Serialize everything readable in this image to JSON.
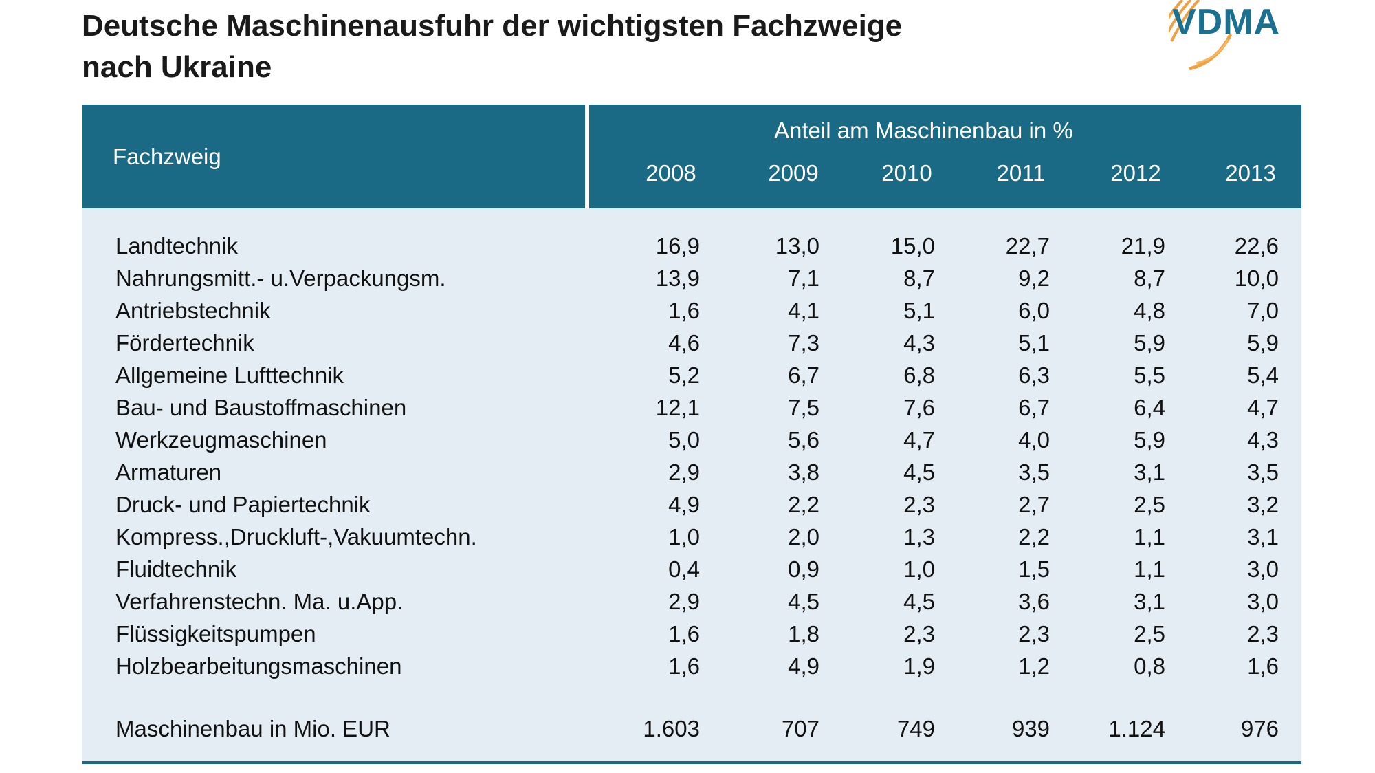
{
  "header": {
    "title_line1": "Deutsche Maschinenausfuhr der wichtigsten Fachzweige",
    "title_line2": "nach Ukraine",
    "logo": "VDMA"
  },
  "table": {
    "column_header": "Fachzweig",
    "group_header": "Anteil am Maschinenbau in %",
    "years": [
      "2008",
      "2009",
      "2010",
      "2011",
      "2012",
      "2013"
    ],
    "rows": [
      [
        "Landtechnik",
        "16,9",
        "13,0",
        "15,0",
        "22,7",
        "21,9",
        "22,6"
      ],
      [
        "Nahrungsmitt.- u.Verpackungsm.",
        "13,9",
        "7,1",
        "8,7",
        "9,2",
        "8,7",
        "10,0"
      ],
      [
        "Antriebstechnik",
        "1,6",
        "4,1",
        "5,1",
        "6,0",
        "4,8",
        "7,0"
      ],
      [
        "Fördertechnik",
        "4,6",
        "7,3",
        "4,3",
        "5,1",
        "5,9",
        "5,9"
      ],
      [
        "Allgemeine Lufttechnik",
        "5,2",
        "6,7",
        "6,8",
        "6,3",
        "5,5",
        "5,4"
      ],
      [
        "Bau- und Baustoffmaschinen",
        "12,1",
        "7,5",
        "7,6",
        "6,7",
        "6,4",
        "4,7"
      ],
      [
        "Werkzeugmaschinen",
        "5,0",
        "5,6",
        "4,7",
        "4,0",
        "5,9",
        "4,3"
      ],
      [
        "Armaturen",
        "2,9",
        "3,8",
        "4,5",
        "3,5",
        "3,1",
        "3,5"
      ],
      [
        "Druck- und Papiertechnik",
        "4,9",
        "2,2",
        "2,3",
        "2,7",
        "2,5",
        "3,2"
      ],
      [
        "Kompress.,Druckluft-,Vakuumtechn.",
        "1,0",
        "2,0",
        "1,3",
        "2,2",
        "1,1",
        "3,1"
      ],
      [
        "Fluidtechnik",
        "0,4",
        "0,9",
        "1,0",
        "1,5",
        "1,1",
        "3,0"
      ],
      [
        "Verfahrenstechn. Ma. u.App.",
        "2,9",
        "4,5",
        "4,5",
        "3,6",
        "3,1",
        "3,0"
      ],
      [
        "Flüssigkeitspumpen",
        "1,6",
        "1,8",
        "2,3",
        "2,3",
        "2,5",
        "2,3"
      ],
      [
        "Holzbearbeitungsmaschinen",
        "1,6",
        "4,9",
        "1,9",
        "1,2",
        "0,8",
        "1,6"
      ]
    ],
    "total_row": [
      "Maschinenbau in Mio. EUR",
      "1.603",
      "707",
      "749",
      "939",
      "1.124",
      "976"
    ]
  }
}
